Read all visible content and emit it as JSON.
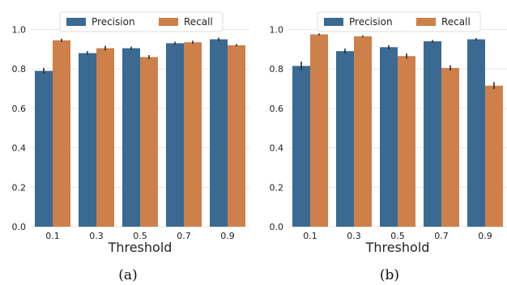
{
  "chart_data": [
    {
      "type": "bar",
      "panel_label": "(a)",
      "categories": [
        "0.1",
        "0.3",
        "0.5",
        "0.7",
        "0.9"
      ],
      "xlabel": "Threshold",
      "ylabel": "",
      "ylim": [
        0,
        1.1
      ],
      "yticks": [
        "0.0",
        "0.2",
        "0.4",
        "0.6",
        "0.8",
        "1.0"
      ],
      "grid": true,
      "legend_position": "top",
      "series": [
        {
          "name": "Precision",
          "color": "#3a6a92",
          "values": [
            0.79,
            0.88,
            0.905,
            0.93,
            0.95
          ],
          "errors": [
            0.015,
            0.01,
            0.008,
            0.008,
            0.008
          ]
        },
        {
          "name": "Recall",
          "color": "#cd804a",
          "values": [
            0.945,
            0.905,
            0.86,
            0.935,
            0.92
          ],
          "errors": [
            0.008,
            0.012,
            0.01,
            0.008,
            0.006
          ]
        }
      ]
    },
    {
      "type": "bar",
      "panel_label": "(b)",
      "categories": [
        "0.1",
        "0.3",
        "0.5",
        "0.7",
        "0.9"
      ],
      "xlabel": "Threshold",
      "ylabel": "",
      "ylim": [
        0,
        1.1
      ],
      "yticks": [
        "0.0",
        "0.2",
        "0.4",
        "0.6",
        "0.8",
        "1.0"
      ],
      "grid": true,
      "legend_position": "top",
      "series": [
        {
          "name": "Precision",
          "color": "#3a6a92",
          "values": [
            0.815,
            0.89,
            0.91,
            0.94,
            0.95
          ],
          "errors": [
            0.022,
            0.013,
            0.01,
            0.007,
            0.006
          ]
        },
        {
          "name": "Recall",
          "color": "#cd804a",
          "values": [
            0.975,
            0.965,
            0.865,
            0.805,
            0.715
          ],
          "errors": [
            0.005,
            0.005,
            0.013,
            0.013,
            0.018
          ]
        }
      ]
    }
  ]
}
